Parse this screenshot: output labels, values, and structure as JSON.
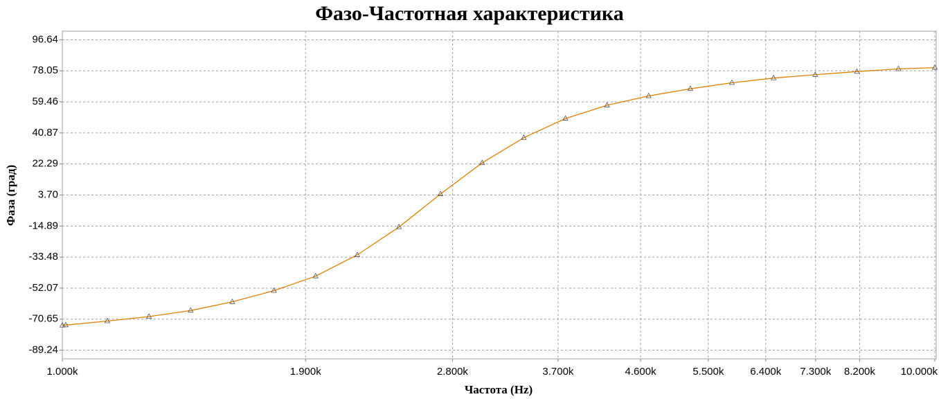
{
  "chart_data": {
    "type": "line",
    "title": "Фазо-Частотная характеристика",
    "x_label": "Частота (Hz)",
    "y_label": "Фаза (град)",
    "log_x": true,
    "grid": true,
    "marker": "triangle",
    "x": [
      1000,
      1009,
      1126,
      1257,
      1403,
      1566,
      1748,
      1951,
      2178,
      2431,
      2713,
      3028,
      3380,
      3772,
      4210,
      4699,
      5245,
      5854,
      6534,
      7293,
      8140,
      9085,
      10000
    ],
    "series": [
      {
        "name": "Фаза",
        "color": "#e08000",
        "values": [
          -74.4,
          -74.2,
          -71.8,
          -69.1,
          -65.5,
          -60.3,
          -53.6,
          -44.9,
          -32.2,
          -15.5,
          4.3,
          22.9,
          38.0,
          49.5,
          57.4,
          63.0,
          67.3,
          70.9,
          73.7,
          75.7,
          77.6,
          79.2,
          80.0
        ]
      }
    ],
    "xlim": [
      1000,
      10037
    ],
    "xticks": [
      {
        "value": 1000,
        "label": "1.000k"
      },
      {
        "value": 1900,
        "label": "1.900k"
      },
      {
        "value": 2800,
        "label": "2.800k"
      },
      {
        "value": 3700,
        "label": "3.700k"
      },
      {
        "value": 4600,
        "label": "4.600k"
      },
      {
        "value": 5500,
        "label": "5.500k"
      },
      {
        "value": 6400,
        "label": "6.400k"
      },
      {
        "value": 7300,
        "label": "7.300k"
      },
      {
        "value": 8200,
        "label": "8.200k"
      },
      {
        "value": 10000,
        "label": "10.000k"
      }
    ],
    "ylim": [
      -94.4,
      101.8
    ],
    "yticks": [
      -89.24,
      -70.65,
      -52.07,
      -33.48,
      -14.89,
      {
        "value": 3.7,
        "label": "3.70"
      },
      22.29,
      40.87,
      59.46,
      78.05,
      96.64
    ]
  }
}
